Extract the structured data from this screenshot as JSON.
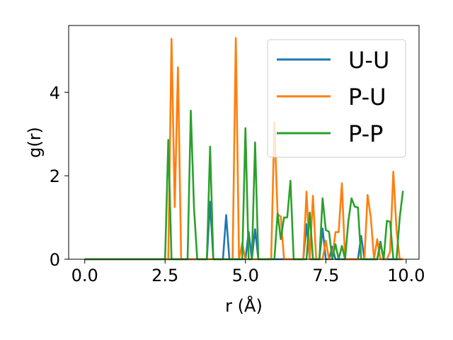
{
  "chart_data": {
    "type": "line",
    "title": "",
    "xlabel": "r (Å)",
    "ylabel": "g(r)",
    "xlim": [
      -0.5,
      10.4
    ],
    "ylim": [
      0,
      5.6
    ],
    "x_ticks": [
      "0.0",
      "2.5",
      "5.0",
      "7.5",
      "10.0"
    ],
    "y_ticks": [
      "0",
      "2",
      "4"
    ],
    "grid": false,
    "legend_position": "top-right",
    "x": [
      0.0,
      0.1,
      0.2,
      0.3,
      0.4,
      0.5,
      0.6,
      0.7,
      0.8,
      0.9,
      1.0,
      1.1,
      1.2,
      1.3,
      1.4,
      1.5,
      1.6,
      1.7,
      1.8,
      1.9,
      2.0,
      2.1,
      2.2,
      2.3,
      2.4,
      2.5,
      2.6,
      2.7,
      2.8,
      2.9,
      3.0,
      3.1,
      3.2,
      3.3,
      3.4,
      3.5,
      3.6,
      3.7,
      3.8,
      3.9,
      4.0,
      4.1,
      4.2,
      4.3,
      4.4,
      4.5,
      4.6,
      4.7,
      4.8,
      4.9,
      5.0,
      5.1,
      5.2,
      5.3,
      5.4,
      5.5,
      5.6,
      5.7,
      5.8,
      5.9,
      6.0,
      6.1,
      6.2,
      6.3,
      6.4,
      6.5,
      6.6,
      6.7,
      6.8,
      6.9,
      7.0,
      7.1,
      7.2,
      7.3,
      7.4,
      7.5,
      7.6,
      7.7,
      7.8,
      7.9,
      8.0,
      8.1,
      8.2,
      8.3,
      8.4,
      8.5,
      8.6,
      8.7,
      8.8,
      8.9,
      9.0,
      9.1,
      9.2,
      9.3,
      9.4,
      9.5,
      9.6,
      9.7,
      9.8,
      9.9
    ],
    "series": [
      {
        "name": "U-U",
        "color": "#1f77b4",
        "values": [
          0,
          0,
          0,
          0,
          0,
          0,
          0,
          0,
          0,
          0,
          0,
          0,
          0,
          0,
          0,
          0,
          0,
          0,
          0,
          0,
          0,
          0,
          0,
          0,
          0,
          0,
          0,
          0,
          0,
          0,
          0,
          0,
          0,
          0,
          0,
          0,
          0,
          0,
          0,
          1.38,
          0,
          0,
          0,
          0,
          1.06,
          0,
          0,
          0,
          0,
          0,
          0,
          0.66,
          0,
          0.72,
          0,
          0,
          0,
          0,
          0,
          0,
          0,
          0,
          0,
          0,
          0,
          0,
          0,
          0,
          0,
          0.84,
          0,
          0,
          0,
          0,
          0.74,
          0,
          0,
          0.3,
          0,
          0,
          0,
          0,
          0,
          0,
          0,
          0,
          0.56,
          0,
          0,
          0,
          0,
          0,
          0.42,
          0,
          0,
          0,
          0,
          0,
          0,
          0
        ]
      },
      {
        "name": "P-U",
        "color": "#ff7f0e",
        "values": [
          0,
          0,
          0,
          0,
          0,
          0,
          0,
          0,
          0,
          0,
          0,
          0,
          0,
          0,
          0,
          0,
          0,
          0,
          0,
          0,
          0,
          0,
          0,
          0,
          0,
          0,
          0,
          5.28,
          1.25,
          4.6,
          0,
          0,
          0,
          0,
          0,
          0,
          0,
          0,
          0,
          0,
          0,
          0,
          0,
          0,
          0,
          0,
          0,
          5.3,
          0,
          0.38,
          0,
          0,
          0,
          0,
          0,
          0,
          0,
          0,
          0,
          3.28,
          1.08,
          1.02,
          0,
          0,
          0,
          0,
          0,
          0,
          0,
          1.62,
          0,
          1.52,
          0,
          0,
          0,
          0.45,
          0,
          0,
          0.65,
          0.65,
          1.82,
          0,
          0,
          0,
          0,
          0,
          0,
          0,
          1.54,
          1.0,
          0,
          0.48,
          0,
          0,
          0,
          0.18,
          2.1,
          0.7,
          0,
          0
        ]
      },
      {
        "name": "P-P",
        "color": "#2ca02c",
        "values": [
          0,
          0,
          0,
          0,
          0,
          0,
          0,
          0,
          0,
          0,
          0,
          0,
          0,
          0,
          0,
          0,
          0,
          0,
          0,
          0,
          0,
          0,
          0,
          0,
          0,
          0,
          2.86,
          0,
          0,
          0,
          0,
          0,
          0,
          3.56,
          1.22,
          0,
          0,
          0,
          0,
          2.7,
          0,
          0,
          0,
          0,
          0,
          0,
          0,
          0,
          0,
          0,
          3.14,
          0,
          0,
          2.8,
          0,
          0,
          0,
          0,
          0,
          0,
          1.1,
          0.48,
          1.0,
          1.0,
          1.88,
          0,
          0,
          0,
          0,
          0,
          1.12,
          0,
          0,
          0,
          1.46,
          0.7,
          0.66,
          0,
          0.36,
          0,
          0.32,
          0,
          0.9,
          1.46,
          1.26,
          1.24,
          0,
          0,
          0,
          0,
          0,
          0,
          0.38,
          0,
          0.92,
          0.9,
          0,
          0,
          1.0,
          1.64
        ]
      }
    ]
  }
}
